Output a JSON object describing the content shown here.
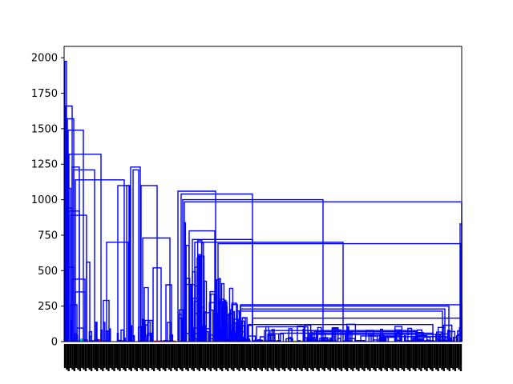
{
  "chart_data": {
    "type": "dendrogram",
    "title": "",
    "xlabel": "",
    "ylabel": "",
    "ylim": [
      0,
      2080
    ],
    "yticks": [
      0,
      250,
      500,
      750,
      1000,
      1250,
      1500,
      1750,
      2000
    ],
    "ytick_labels": [
      "0",
      "250",
      "500",
      "750",
      "1000",
      "1250",
      "1500",
      "1750",
      "2000"
    ],
    "leaf_labels_legible": false,
    "cluster_colors": [
      "#0000ff",
      "#ff0000",
      "#bfbf00",
      "#00bfbf",
      "#008000"
    ],
    "link_color": "#0000ff",
    "major_merge_heights": [
      1975,
      1660,
      1570,
      1530,
      1490,
      1320,
      1310,
      1230,
      1210,
      1140,
      1100,
      1060,
      1040,
      1000,
      990,
      985,
      940,
      890,
      780,
      730,
      720,
      700,
      690,
      525,
      440,
      350,
      290,
      260,
      230,
      215,
      165,
      95,
      40
    ],
    "leaf_cluster_heights": [
      5,
      10,
      20,
      30,
      50,
      80,
      120,
      180,
      250,
      330,
      410,
      480,
      560,
      640,
      700,
      760,
      820,
      870,
      920,
      960
    ]
  }
}
